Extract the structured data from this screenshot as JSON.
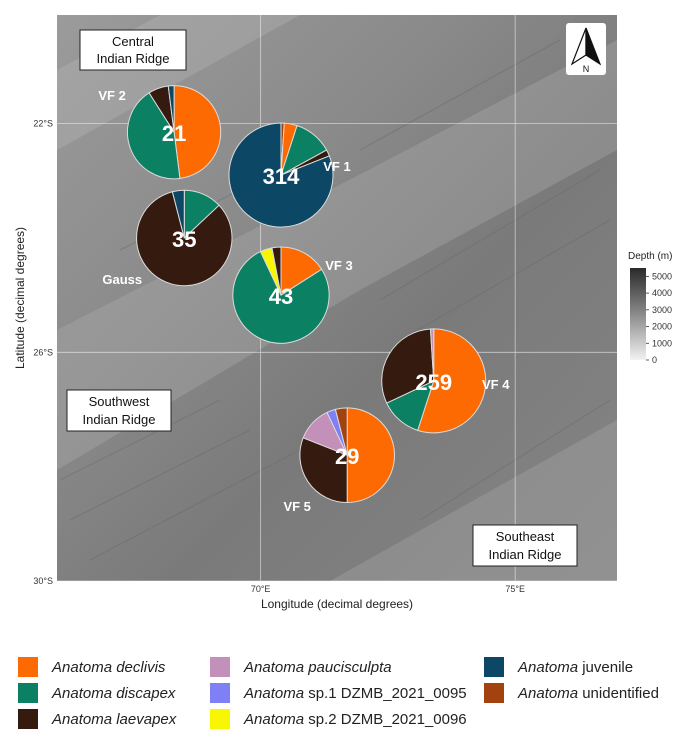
{
  "map": {
    "xlabel": "Longitude (decimal degrees)",
    "ylabel": "Latitude (decimal degrees)",
    "x_ticks": [
      {
        "lon": 70,
        "label": "70°E"
      },
      {
        "lon": 75,
        "label": "75°E"
      }
    ],
    "y_ticks": [
      {
        "lat": -22,
        "label": "22°S"
      },
      {
        "lat": -26,
        "label": "26°S"
      },
      {
        "lat": -30,
        "label": "30°S"
      }
    ],
    "xlim": [
      66,
      77
    ],
    "ylim": [
      -30,
      -20.1
    ],
    "north_arrow_label": "N",
    "ridge_labels": [
      {
        "line1": "Central",
        "line2": "Indian Ridge"
      },
      {
        "line1": "Southwest",
        "line2": "Indian Ridge"
      },
      {
        "line1": "Southeast",
        "line2": "Indian Ridge"
      }
    ],
    "depth_legend": {
      "title": "Depth (m)",
      "ticks": [
        "5000",
        "4000",
        "3000",
        "2000",
        "1000",
        "0"
      ],
      "max_depth": 5500
    }
  },
  "chart_data": {
    "type": "pie",
    "sites": [
      {
        "name": "VF 2",
        "lon": 68.3,
        "lat": -22.15,
        "total": "21",
        "slices": [
          {
            "category": "declivis",
            "fraction": 0.48
          },
          {
            "category": "discapex",
            "fraction": 0.43
          },
          {
            "category": "laevapex",
            "fraction": 0.07
          },
          {
            "category": "juvenile",
            "fraction": 0.02
          }
        ]
      },
      {
        "name": "VF 1",
        "lon": 70.4,
        "lat": -22.9,
        "total": "314",
        "slices": [
          {
            "category": "unidentified",
            "fraction": 0.01
          },
          {
            "category": "declivis",
            "fraction": 0.04
          },
          {
            "category": "discapex",
            "fraction": 0.12
          },
          {
            "category": "laevapex",
            "fraction": 0.02
          },
          {
            "category": "juvenile",
            "fraction": 0.81
          }
        ]
      },
      {
        "name": "Gauss",
        "lon": 68.5,
        "lat": -24.0,
        "total": "35",
        "slices": [
          {
            "category": "discapex",
            "fraction": 0.13
          },
          {
            "category": "laevapex",
            "fraction": 0.83
          },
          {
            "category": "juvenile",
            "fraction": 0.04
          }
        ]
      },
      {
        "name": "VF 3",
        "lon": 70.4,
        "lat": -25.0,
        "total": "43",
        "slices": [
          {
            "category": "declivis",
            "fraction": 0.16
          },
          {
            "category": "discapex",
            "fraction": 0.77
          },
          {
            "category": "sp2",
            "fraction": 0.04
          },
          {
            "category": "laevapex",
            "fraction": 0.03
          }
        ]
      },
      {
        "name": "VF 4",
        "lon": 73.4,
        "lat": -26.5,
        "total": "259",
        "slices": [
          {
            "category": "declivis",
            "fraction": 0.55
          },
          {
            "category": "discapex",
            "fraction": 0.13
          },
          {
            "category": "laevapex",
            "fraction": 0.31
          },
          {
            "category": "paucisculpta",
            "fraction": 0.01
          }
        ]
      },
      {
        "name": "VF 5",
        "lon": 71.7,
        "lat": -27.8,
        "total": "29",
        "slices": [
          {
            "category": "declivis",
            "fraction": 0.5
          },
          {
            "category": "laevapex",
            "fraction": 0.31
          },
          {
            "category": "paucisculpta",
            "fraction": 0.12
          },
          {
            "category": "sp1",
            "fraction": 0.03
          },
          {
            "category": "unidentified",
            "fraction": 0.04
          }
        ]
      }
    ]
  },
  "legend": {
    "items": [
      {
        "key": "declivis",
        "genus": "Anatoma",
        "rest": " declivis",
        "rest_italic": true,
        "color": "#fd6a02"
      },
      {
        "key": "discapex",
        "genus": "Anatoma",
        "rest": " discapex",
        "rest_italic": true,
        "color": "#0b8062"
      },
      {
        "key": "laevapex",
        "genus": "Anatoma",
        "rest": " laevapex",
        "rest_italic": true,
        "color": "#351a0f"
      },
      {
        "key": "paucisculpta",
        "genus": "Anatoma",
        "rest": " paucisculpta",
        "rest_italic": true,
        "color": "#c290b8"
      },
      {
        "key": "sp1",
        "genus": "Anatoma",
        "rest": " sp.1 DZMB_2021_0095",
        "rest_italic": false,
        "color": "#8080f6"
      },
      {
        "key": "sp2",
        "genus": "Anatoma",
        "rest": " sp.2 DZMB_2021_0096",
        "rest_italic": false,
        "color": "#f8f700"
      },
      {
        "key": "juvenile",
        "genus": "Anatoma",
        "rest": " juvenile",
        "rest_italic": false,
        "color": "#0d4766"
      },
      {
        "key": "unidentified",
        "genus": "Anatoma",
        "rest": " unidentified",
        "rest_italic": false,
        "color": "#a1420f"
      }
    ]
  }
}
